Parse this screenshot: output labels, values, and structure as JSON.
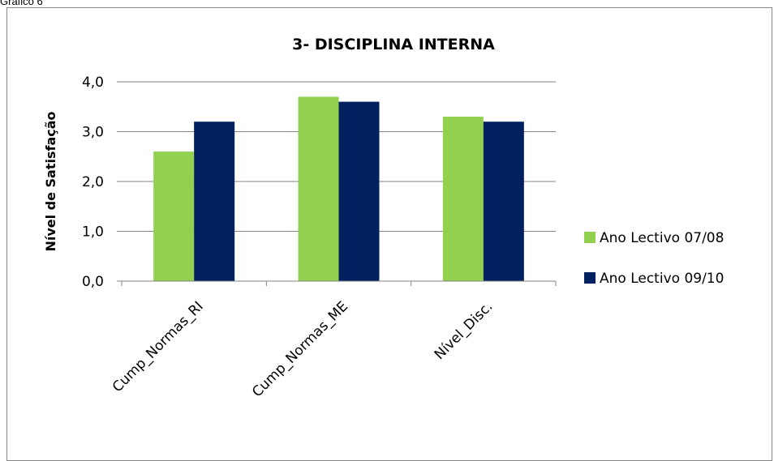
{
  "caption": "Gráfico 6",
  "chart_data": {
    "type": "bar",
    "title": "3- DISCIPLINA INTERNA",
    "xlabel": "",
    "ylabel": "Nível de Satisfação",
    "ylim": [
      0,
      4
    ],
    "yticks": [
      "0,0",
      "1,0",
      "2,0",
      "3,0",
      "4,0"
    ],
    "categories": [
      "Cump_Normas_RI",
      "Cump_Normas_ME",
      "Nível_Disc."
    ],
    "series": [
      {
        "name": "Ano Lectivo 07/08",
        "color": "#92D050",
        "values": [
          2.6,
          3.7,
          3.3
        ]
      },
      {
        "name": "Ano Lectivo 09/10",
        "color": "#002060",
        "values": [
          3.2,
          3.6,
          3.2
        ]
      }
    ],
    "grid": true,
    "legend_position": "right"
  }
}
